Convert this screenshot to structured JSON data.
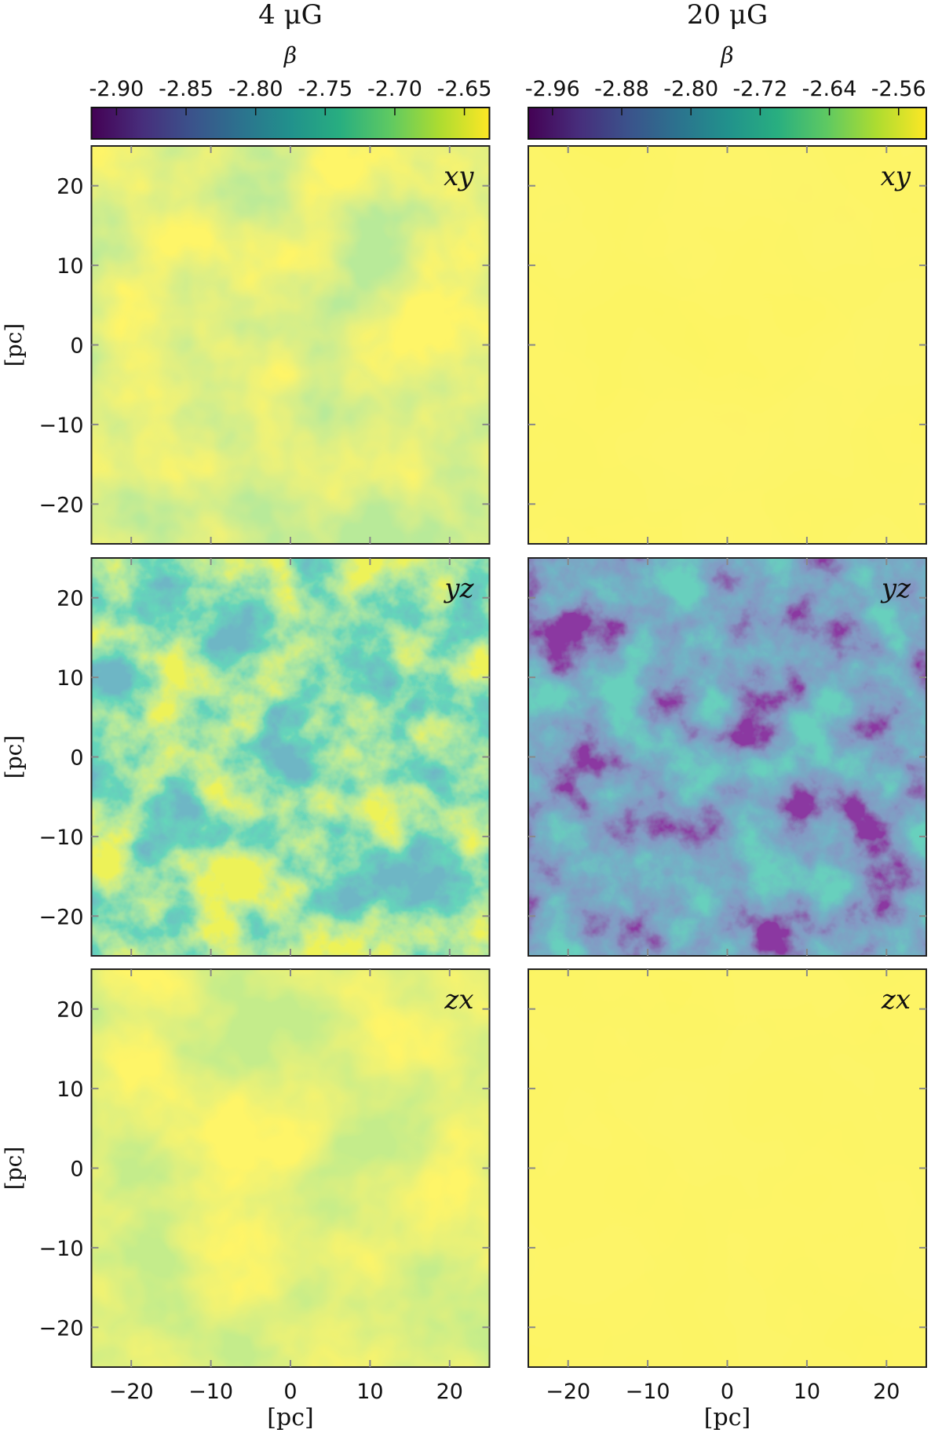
{
  "chart_data": [
    {
      "type": "heatmap",
      "title": "4 μG",
      "colorbar": {
        "label": "β",
        "lim": [
          -2.918,
          -2.632
        ],
        "ticks": [
          {
            "value": -2.9,
            "label": "-2.90"
          },
          -2.85,
          {
            "value": -2.8,
            "label": "-2.80"
          },
          -2.75,
          {
            "value": -2.7,
            "label": "-2.70"
          },
          -2.65
        ]
      },
      "xlim": [
        -25,
        25
      ],
      "ylim": [
        -25,
        25
      ],
      "xticks": [
        {
          "value": -20,
          "label": "−20"
        },
        {
          "value": -10,
          "label": "−10"
        },
        0,
        10,
        20
      ],
      "yticks": [
        {
          "value": -20,
          "label": "−20"
        },
        {
          "value": -10,
          "label": "−10"
        },
        0,
        10,
        20
      ],
      "xlabel": "[pc]",
      "ylabel": "[pc]",
      "panels": [
        {
          "label": "xy"
        },
        {
          "label": "yz"
        },
        {
          "label": "zx"
        }
      ]
    },
    {
      "type": "heatmap",
      "title": "20 μG",
      "colorbar": {
        "label": "β",
        "lim": [
          -2.988,
          -2.528
        ],
        "ticks": [
          -2.96,
          -2.88,
          {
            "value": -2.8,
            "label": "-2.80"
          },
          -2.72,
          -2.64,
          -2.56
        ]
      },
      "xlim": [
        -25,
        25
      ],
      "ylim": [
        -25,
        25
      ],
      "xticks": [
        {
          "value": -20,
          "label": "−20"
        },
        {
          "value": -10,
          "label": "−10"
        },
        0,
        10,
        20
      ],
      "yticks": [
        {
          "value": -20,
          "label": "−20"
        },
        {
          "value": -10,
          "label": "−10"
        },
        0,
        10,
        20
      ],
      "xlabel": "[pc]",
      "panels": [
        {
          "label": "xy"
        },
        {
          "label": "yz"
        },
        {
          "label": "zx"
        }
      ]
    }
  ]
}
